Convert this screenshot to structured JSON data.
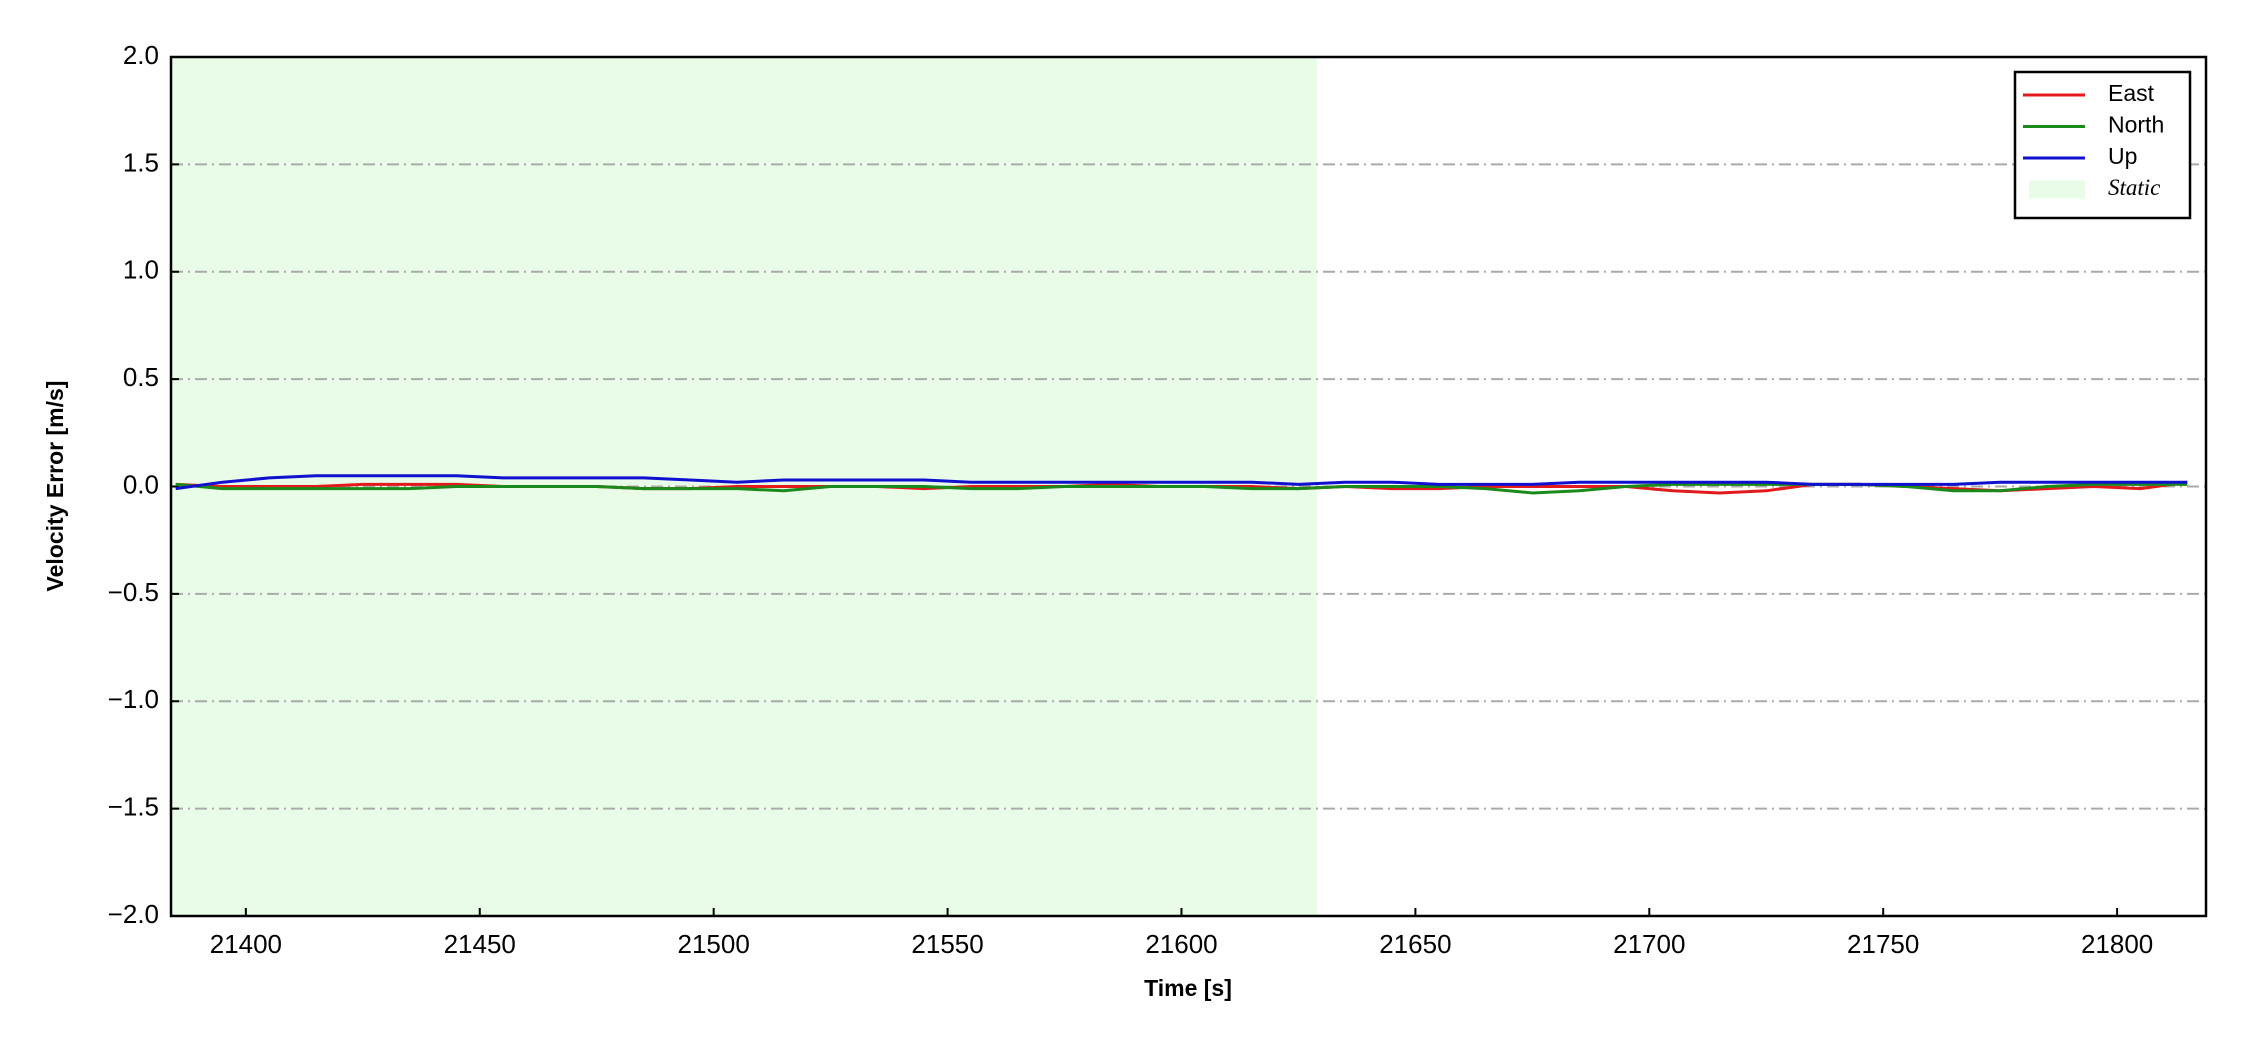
{
  "chart_data": {
    "type": "line",
    "xlabel": "Time [s]",
    "ylabel": "Velocity Error [m/s]",
    "x": [
      21385,
      21395,
      21405,
      21415,
      21425,
      21435,
      21445,
      21455,
      21465,
      21475,
      21485,
      21495,
      21505,
      21515,
      21525,
      21535,
      21545,
      21555,
      21565,
      21575,
      21585,
      21595,
      21605,
      21615,
      21625,
      21635,
      21645,
      21655,
      21665,
      21675,
      21685,
      21695,
      21705,
      21715,
      21725,
      21735,
      21745,
      21755,
      21765,
      21775,
      21785,
      21795,
      21805,
      21815
    ],
    "series": [
      {
        "name": "East",
        "color": "#e31a1c",
        "values": [
          0.01,
          0,
          0,
          0,
          0.01,
          0.01,
          0.01,
          0,
          0,
          0,
          -0.01,
          -0.01,
          0,
          0,
          0,
          0,
          -0.01,
          0,
          0,
          0,
          0.01,
          0,
          0,
          0,
          -0.01,
          0,
          -0.01,
          -0.01,
          0,
          0,
          0,
          0,
          -0.02,
          -0.03,
          -0.02,
          0.01,
          0.01,
          0,
          -0.01,
          -0.02,
          -0.01,
          0,
          -0.01,
          0.02
        ]
      },
      {
        "name": "North",
        "color": "#1a8a1a",
        "values": [
          0.01,
          -0.01,
          -0.01,
          -0.01,
          -0.01,
          -0.01,
          0,
          0,
          0,
          0,
          -0.01,
          -0.01,
          -0.01,
          -0.02,
          0,
          0,
          0,
          -0.01,
          -0.01,
          0,
          0,
          0,
          0,
          -0.01,
          -0.01,
          0,
          0,
          0,
          -0.01,
          -0.03,
          -0.02,
          0,
          0.01,
          0.01,
          0.01,
          0.01,
          0.01,
          0,
          -0.02,
          -0.02,
          0,
          0.01,
          0.01,
          0.01
        ]
      },
      {
        "name": "Up",
        "color": "#1010d0",
        "values": [
          -0.01,
          0.02,
          0.04,
          0.05,
          0.05,
          0.05,
          0.05,
          0.04,
          0.04,
          0.04,
          0.04,
          0.03,
          0.02,
          0.03,
          0.03,
          0.03,
          0.03,
          0.02,
          0.02,
          0.02,
          0.02,
          0.02,
          0.02,
          0.02,
          0.01,
          0.02,
          0.02,
          0.01,
          0.01,
          0.01,
          0.02,
          0.02,
          0.02,
          0.02,
          0.02,
          0.01,
          0.01,
          0.01,
          0.01,
          0.02,
          0.02,
          0.02,
          0.02,
          0.02
        ]
      }
    ],
    "spans": [
      {
        "name": "Static",
        "color": "#e8fce8",
        "x0": 21384,
        "x1": 21629
      }
    ],
    "xlim": [
      21384,
      21819
    ],
    "xticks": [
      21400,
      21450,
      21500,
      21550,
      21600,
      21650,
      21700,
      21750,
      21800
    ],
    "ylim": [
      -2,
      2
    ],
    "yticks": [
      {
        "value": -2,
        "label": "−2.0"
      },
      {
        "value": -1.5,
        "label": "−1.5"
      },
      {
        "value": -1,
        "label": "−1.0"
      },
      {
        "value": -0.5,
        "label": "−0.5"
      },
      {
        "value": 0,
        "label": "0.0"
      },
      {
        "value": 0.5,
        "label": "0.5"
      },
      {
        "value": 1,
        "label": "1.0"
      },
      {
        "value": 1.5,
        "label": "1.5"
      },
      {
        "value": 2,
        "label": "2.0"
      }
    ],
    "grid": true,
    "legend": "upper right"
  }
}
